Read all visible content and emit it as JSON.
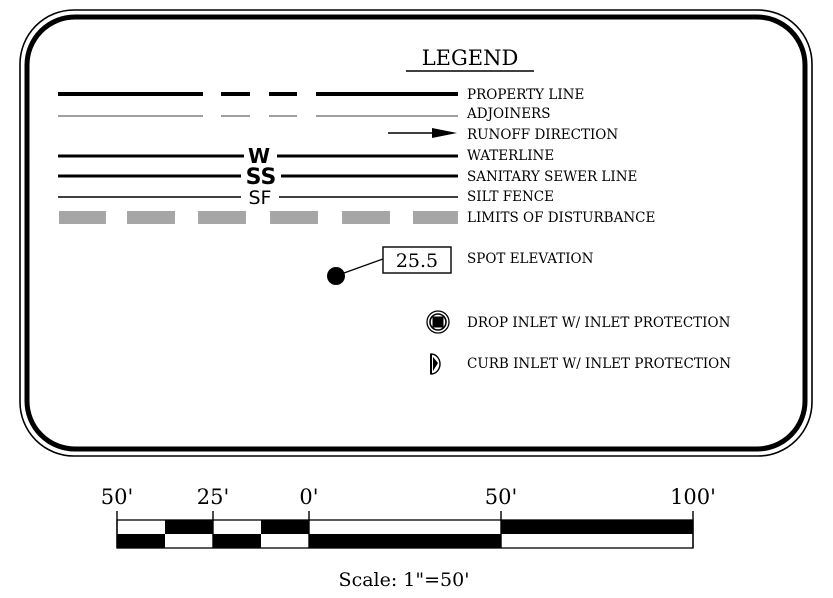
{
  "legend": {
    "title": "LEGEND",
    "items": [
      {
        "key": "property_line",
        "label": "PROPERTY LINE"
      },
      {
        "key": "adjoiners",
        "label": "ADJOINERS"
      },
      {
        "key": "runoff_direction",
        "label": "RUNOFF DIRECTION"
      },
      {
        "key": "waterline",
        "label": "WATERLINE",
        "line_code": "W"
      },
      {
        "key": "sanitary_sewer_line",
        "label": "SANITARY SEWER LINE",
        "line_code": "SS"
      },
      {
        "key": "silt_fence",
        "label": "SILT FENCE",
        "line_code": "SF"
      },
      {
        "key": "limits_of_disturbance",
        "label": "LIMITS OF DISTURBANCE"
      },
      {
        "key": "spot_elevation",
        "label": "SPOT ELEVATION",
        "sample_value": "25.5"
      },
      {
        "key": "drop_inlet",
        "label": "DROP INLET W/ INLET PROTECTION"
      },
      {
        "key": "curb_inlet",
        "label": "CURB INLET W/ INLET PROTECTION"
      }
    ]
  },
  "scale_bar": {
    "tick_labels": [
      "50'",
      "25'",
      "0'",
      "50'",
      "100'"
    ],
    "caption": "Scale: 1\"=50'"
  },
  "colors": {
    "line": "#000000",
    "limits_of_disturbance": "#a6a6a6",
    "background": "#ffffff"
  }
}
